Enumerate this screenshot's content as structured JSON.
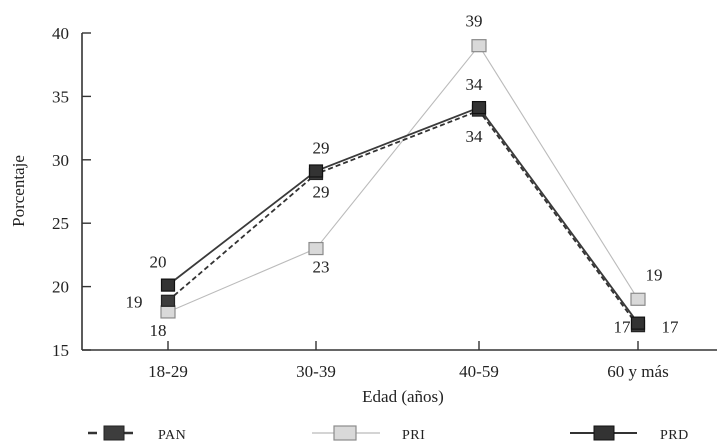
{
  "chart_data": {
    "type": "line",
    "categories": [
      "18-29",
      "30-39",
      "40-59",
      "60 y más"
    ],
    "xlabel": "Edad (años)",
    "ylabel": "Porcentaje",
    "ylim": [
      15,
      40
    ],
    "yticks": [
      15,
      20,
      25,
      30,
      35,
      40
    ],
    "grid": false,
    "legend_position": "bottom",
    "series": [
      {
        "name": "PAN",
        "values": [
          19,
          29,
          34,
          17
        ],
        "color": "#333333",
        "line_style": "dashed",
        "marker": "dark-square",
        "data_labels": [
          "19",
          "29",
          "34",
          "17"
        ]
      },
      {
        "name": "PRI",
        "values": [
          18,
          23,
          39,
          19
        ],
        "color": "#bbbbbb",
        "line_style": "solid-light",
        "marker": "light-square",
        "data_labels": [
          "18",
          "23",
          "39",
          "19"
        ]
      },
      {
        "name": "PRD",
        "values": [
          20,
          29,
          34,
          17
        ],
        "color": "#3a3a3a",
        "line_style": "solid",
        "marker": "dark-square",
        "data_labels": [
          "20",
          "29",
          "34",
          "17"
        ]
      }
    ]
  }
}
